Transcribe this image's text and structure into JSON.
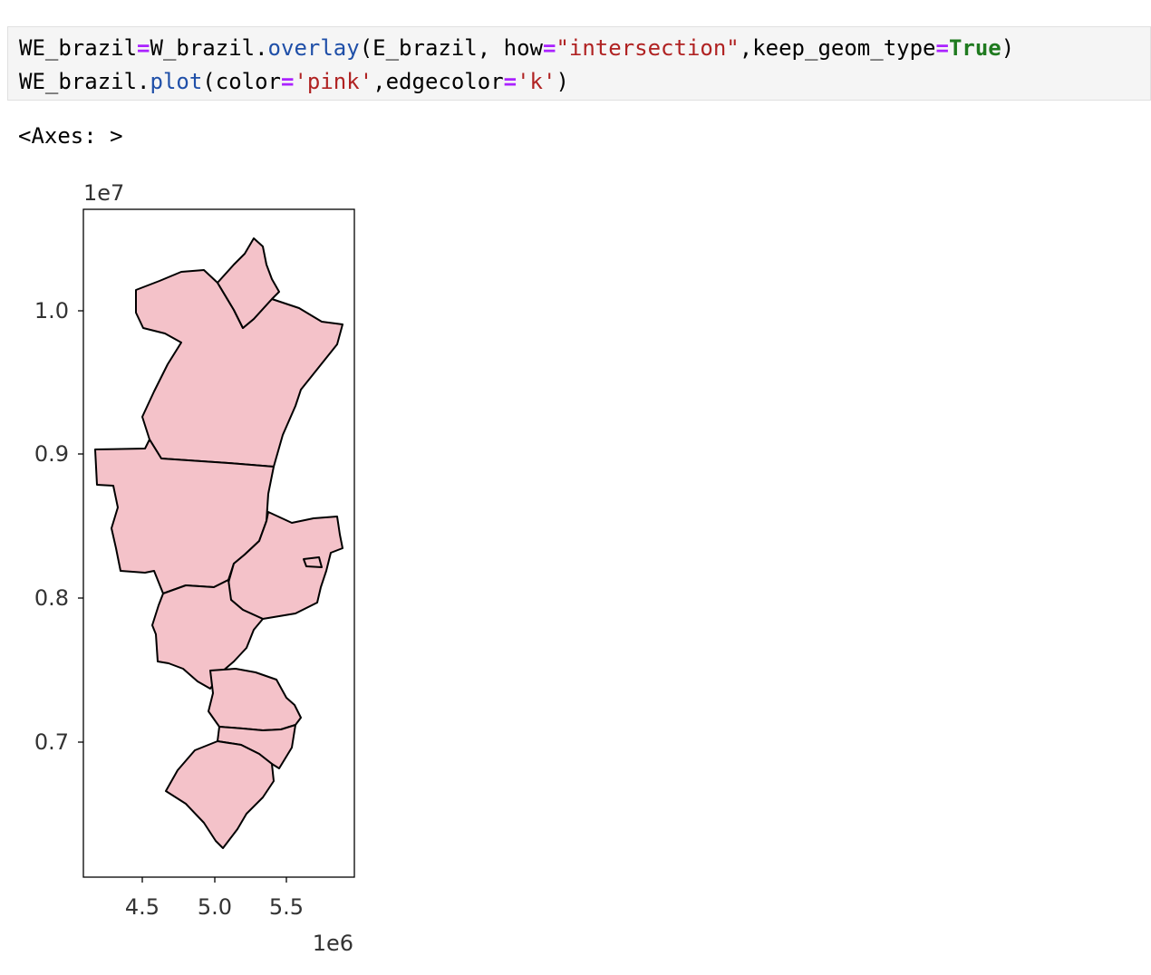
{
  "code_cell": {
    "line1": {
      "var": "WE_brazil",
      "assign": "=",
      "obj": "W_brazil.",
      "method": "overlay",
      "args_open": "(E_brazil, how",
      "eq1": "=",
      "how_value": "\"intersection\"",
      "sep": ",keep_geom_type",
      "eq2": "=",
      "bool": "True",
      "close": ")"
    },
    "line2": {
      "obj": "WE_brazil.",
      "method": "plot",
      "args_open": "(color",
      "eq1": "=",
      "color_value": "'pink'",
      "sep": ",edgecolor",
      "eq2": "=",
      "edge_value": "'k'",
      "close": ")"
    }
  },
  "output": {
    "text": "<Axes: >"
  },
  "chart_data": {
    "type": "map",
    "fill_color": "#f4c2c9",
    "edge_color": "#000000",
    "x_scale_label": "1e6",
    "y_scale_label": "1e7",
    "x_ticks": [
      "4.5",
      "5.0",
      "5.5"
    ],
    "y_ticks": [
      "1.0",
      "0.9",
      "0.8",
      "0.7"
    ],
    "xlim": [
      4.05,
      5.95
    ],
    "ylim": [
      6.05,
      10.72
    ],
    "region_count": 8
  }
}
